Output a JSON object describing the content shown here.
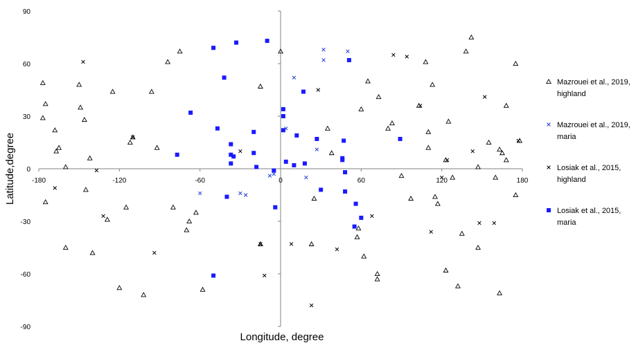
{
  "chart_data": {
    "type": "scatter",
    "title": "",
    "xlabel": "Longitude, degree",
    "ylabel": "Latitude,degree",
    "xlim": [
      -180,
      180
    ],
    "ylim": [
      -90,
      90
    ],
    "xticks": [
      "-180",
      "-120",
      "-60",
      "0",
      "60",
      "120",
      "180"
    ],
    "yticks": [
      "90",
      "60",
      "30",
      "0",
      "-30",
      "-60",
      "-90"
    ],
    "legend_position": "right",
    "series": [
      {
        "name": "Mazrouei et al., 2019, highland",
        "name_lines": [
          "Mazrouei et al., 2019,",
          "highland"
        ],
        "marker": "triangle",
        "color": "#000000",
        "points": [
          [
            -177,
            49
          ],
          [
            -175,
            37
          ],
          [
            -177,
            29
          ],
          [
            -168,
            22
          ],
          [
            -165,
            12
          ],
          [
            -167,
            10
          ],
          [
            -160,
            1
          ],
          [
            -150,
            48
          ],
          [
            -149,
            35
          ],
          [
            -146,
            28
          ],
          [
            -142,
            6
          ],
          [
            -129,
            -29
          ],
          [
            -125,
            44
          ],
          [
            -112,
            15
          ],
          [
            -110,
            18
          ],
          [
            -102,
            -72
          ],
          [
            -96,
            44
          ],
          [
            -92,
            12
          ],
          [
            -84,
            61
          ],
          [
            -75,
            67
          ],
          [
            -80,
            -22
          ],
          [
            -70,
            -35
          ],
          [
            -68,
            -30
          ],
          [
            -63,
            -25
          ],
          [
            -58,
            -69
          ],
          [
            -175,
            -19
          ],
          [
            -160,
            -45
          ],
          [
            -140,
            -48
          ],
          [
            -120,
            -68
          ],
          [
            -115,
            -22
          ],
          [
            -145,
            -12
          ],
          [
            -15,
            47
          ],
          [
            0,
            67
          ],
          [
            -15,
            -43
          ],
          [
            25,
            -17
          ],
          [
            23,
            -43
          ],
          [
            35,
            23
          ],
          [
            38,
            9
          ],
          [
            65,
            50
          ],
          [
            60,
            34
          ],
          [
            73,
            41
          ],
          [
            80,
            23
          ],
          [
            83,
            26
          ],
          [
            97,
            -17
          ],
          [
            103,
            36
          ],
          [
            108,
            61
          ],
          [
            110,
            21
          ],
          [
            110,
            12
          ],
          [
            113,
            48
          ],
          [
            115,
            -16
          ],
          [
            117,
            -20
          ],
          [
            125,
            27
          ],
          [
            123,
            -58
          ],
          [
            132,
            -67
          ],
          [
            135,
            -37
          ],
          [
            138,
            67
          ],
          [
            142,
            75
          ],
          [
            147,
            -45
          ],
          [
            147,
            1
          ],
          [
            155,
            15
          ],
          [
            160,
            -5
          ],
          [
            163,
            11
          ],
          [
            165,
            9
          ],
          [
            168,
            5
          ],
          [
            168,
            36
          ],
          [
            175,
            60
          ],
          [
            175,
            -15
          ],
          [
            178,
            16
          ],
          [
            163,
            -71
          ],
          [
            57,
            -39
          ],
          [
            58,
            -34
          ],
          [
            62,
            -50
          ],
          [
            72,
            -60
          ],
          [
            72,
            -63
          ],
          [
            90,
            -4
          ],
          [
            123,
            5
          ],
          [
            128,
            -5
          ]
        ]
      },
      {
        "name": "Mazrouei et al., 2019, maria",
        "name_lines": [
          "Mazrouei et al., 2019,",
          "maria"
        ],
        "marker": "x",
        "color": "#1f3fd8",
        "points": [
          [
            -60,
            -14
          ],
          [
            -30,
            -14
          ],
          [
            -26,
            -15
          ],
          [
            -8,
            -4
          ],
          [
            -5,
            -3
          ],
          [
            4,
            23
          ],
          [
            10,
            52
          ],
          [
            19,
            -5
          ],
          [
            27,
            11
          ],
          [
            32,
            62
          ],
          [
            32,
            68
          ],
          [
            50,
            67
          ]
        ]
      },
      {
        "name": "Losiak et al., 2015, highland",
        "name_lines": [
          "Losiak et al., 2015,",
          "highland"
        ],
        "marker": "x",
        "color": "#000000",
        "points": [
          [
            -168,
            -11
          ],
          [
            -147,
            61
          ],
          [
            -137,
            -1
          ],
          [
            -132,
            -27
          ],
          [
            -110,
            18
          ],
          [
            -94,
            -48
          ],
          [
            -30,
            10
          ],
          [
            -15,
            -43
          ],
          [
            -12,
            -61
          ],
          [
            8,
            -43
          ],
          [
            23,
            -78
          ],
          [
            28,
            45
          ],
          [
            42,
            -46
          ],
          [
            68,
            -27
          ],
          [
            84,
            65
          ],
          [
            94,
            64
          ],
          [
            104,
            36
          ],
          [
            112,
            -36
          ],
          [
            124,
            5
          ],
          [
            143,
            10
          ],
          [
            152,
            41
          ],
          [
            159,
            -31
          ],
          [
            148,
            -31
          ],
          [
            120,
            -5
          ],
          [
            177,
            16
          ]
        ]
      },
      {
        "name": "Losiak et al., 2015, maria",
        "name_lines": [
          "Losiak et al., 2015,",
          "maria"
        ],
        "marker": "square",
        "color": "#1a1aff",
        "points": [
          [
            -50,
            69
          ],
          [
            -33,
            72
          ],
          [
            -10,
            73
          ],
          [
            -42,
            52
          ],
          [
            -67,
            32
          ],
          [
            -47,
            23
          ],
          [
            -77,
            8
          ],
          [
            -37,
            14
          ],
          [
            -37,
            8
          ],
          [
            -35,
            7
          ],
          [
            -37,
            3
          ],
          [
            -20,
            21
          ],
          [
            -20,
            9
          ],
          [
            -18,
            1
          ],
          [
            -40,
            -16
          ],
          [
            -5,
            -1
          ],
          [
            -4,
            -22
          ],
          [
            -50,
            -61
          ],
          [
            2,
            34
          ],
          [
            2,
            30
          ],
          [
            2,
            22
          ],
          [
            4,
            4
          ],
          [
            10,
            2
          ],
          [
            12,
            19
          ],
          [
            17,
            44
          ],
          [
            18,
            3
          ],
          [
            27,
            17
          ],
          [
            30,
            -12
          ],
          [
            47,
            16
          ],
          [
            46,
            6
          ],
          [
            46,
            5
          ],
          [
            48,
            -2
          ],
          [
            48,
            -13
          ],
          [
            51,
            62
          ],
          [
            56,
            -20
          ],
          [
            55,
            -33
          ],
          [
            60,
            -28
          ],
          [
            89,
            17
          ]
        ]
      }
    ]
  }
}
